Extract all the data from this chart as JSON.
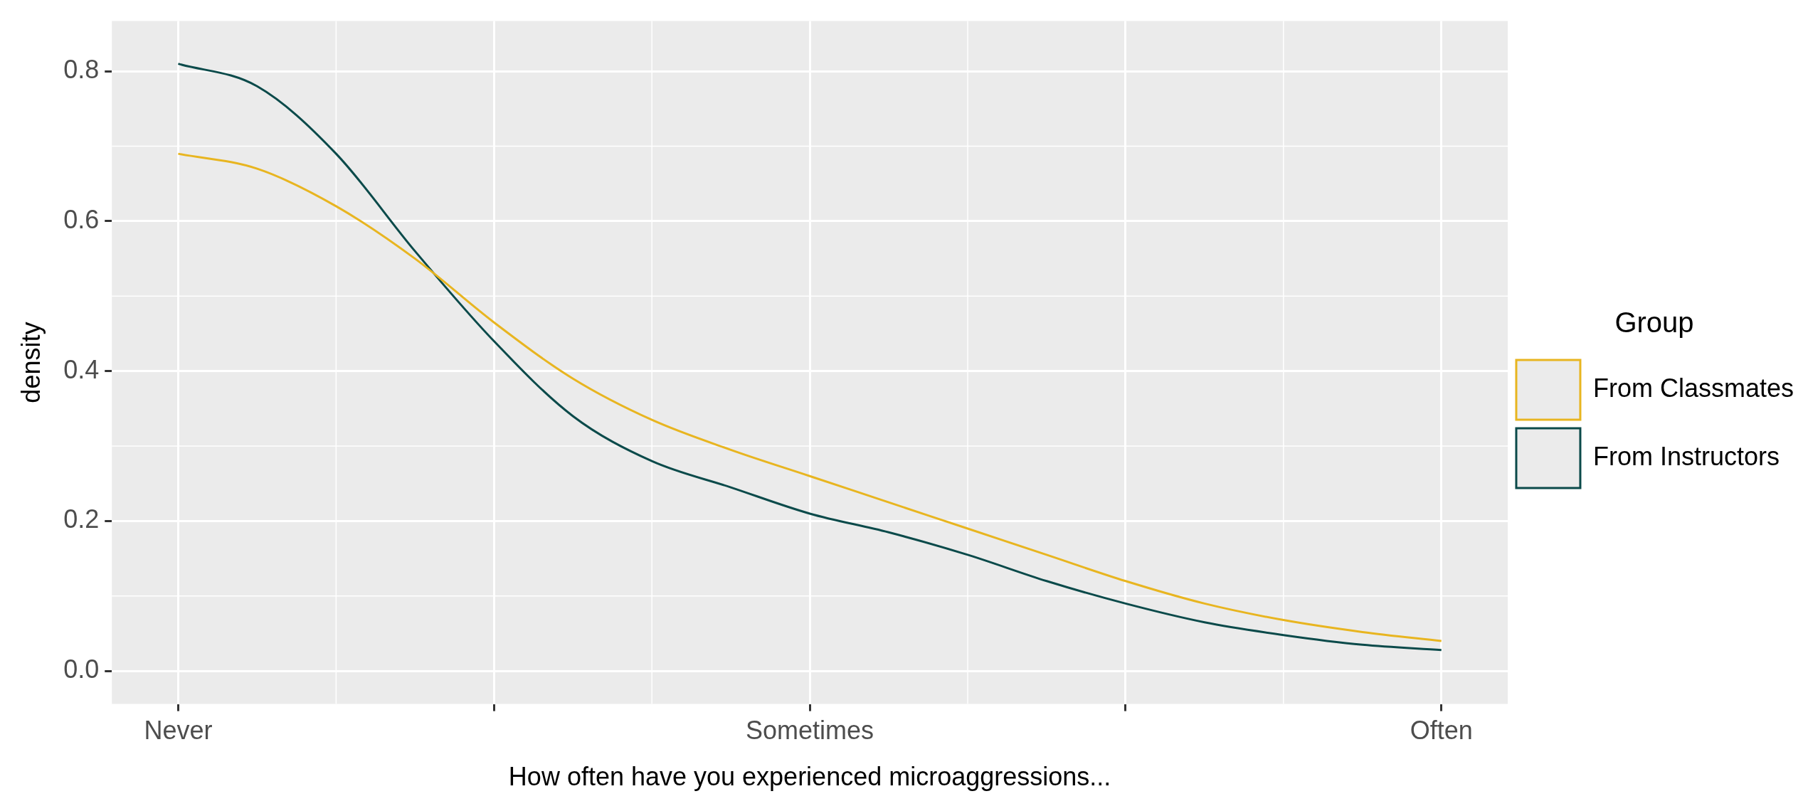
{
  "chart_data": {
    "type": "line",
    "xlabel": "How often have you experienced microaggressions...",
    "ylabel": "density",
    "legend_title": "Group",
    "legend": "right",
    "grid": true,
    "marker": "none",
    "line_style": "solid",
    "ylim": [
      -0.044,
      0.867
    ],
    "yticks": [
      {
        "value": 0,
        "label": "0.0"
      },
      {
        "value": 0.2,
        "label": "0.2"
      },
      {
        "value": 0.4,
        "label": "0.4"
      },
      {
        "value": 0.6,
        "label": "0.6"
      },
      {
        "value": 0.8,
        "label": "0.8"
      }
    ],
    "categories": [
      "Never",
      null,
      null,
      null,
      null,
      null,
      null,
      null,
      "Sometimes",
      null,
      null,
      null,
      null,
      null,
      null,
      null,
      "Often"
    ],
    "series": [
      {
        "name": "From Classmates",
        "color": "#e8b520",
        "values": [
          0.69,
          0.67,
          0.62,
          0.55,
          0.465,
          0.39,
          0.335,
          0.295,
          0.26,
          0.225,
          0.19,
          0.155,
          0.12,
          0.09,
          0.068,
          0.052,
          0.04
        ]
      },
      {
        "name": "From Instructors",
        "color": "#0b4a4a",
        "values": [
          0.81,
          0.78,
          0.69,
          0.56,
          0.44,
          0.34,
          0.28,
          0.245,
          0.21,
          0.185,
          0.155,
          0.12,
          0.09,
          0.065,
          0.048,
          0.035,
          0.028
        ]
      }
    ]
  }
}
